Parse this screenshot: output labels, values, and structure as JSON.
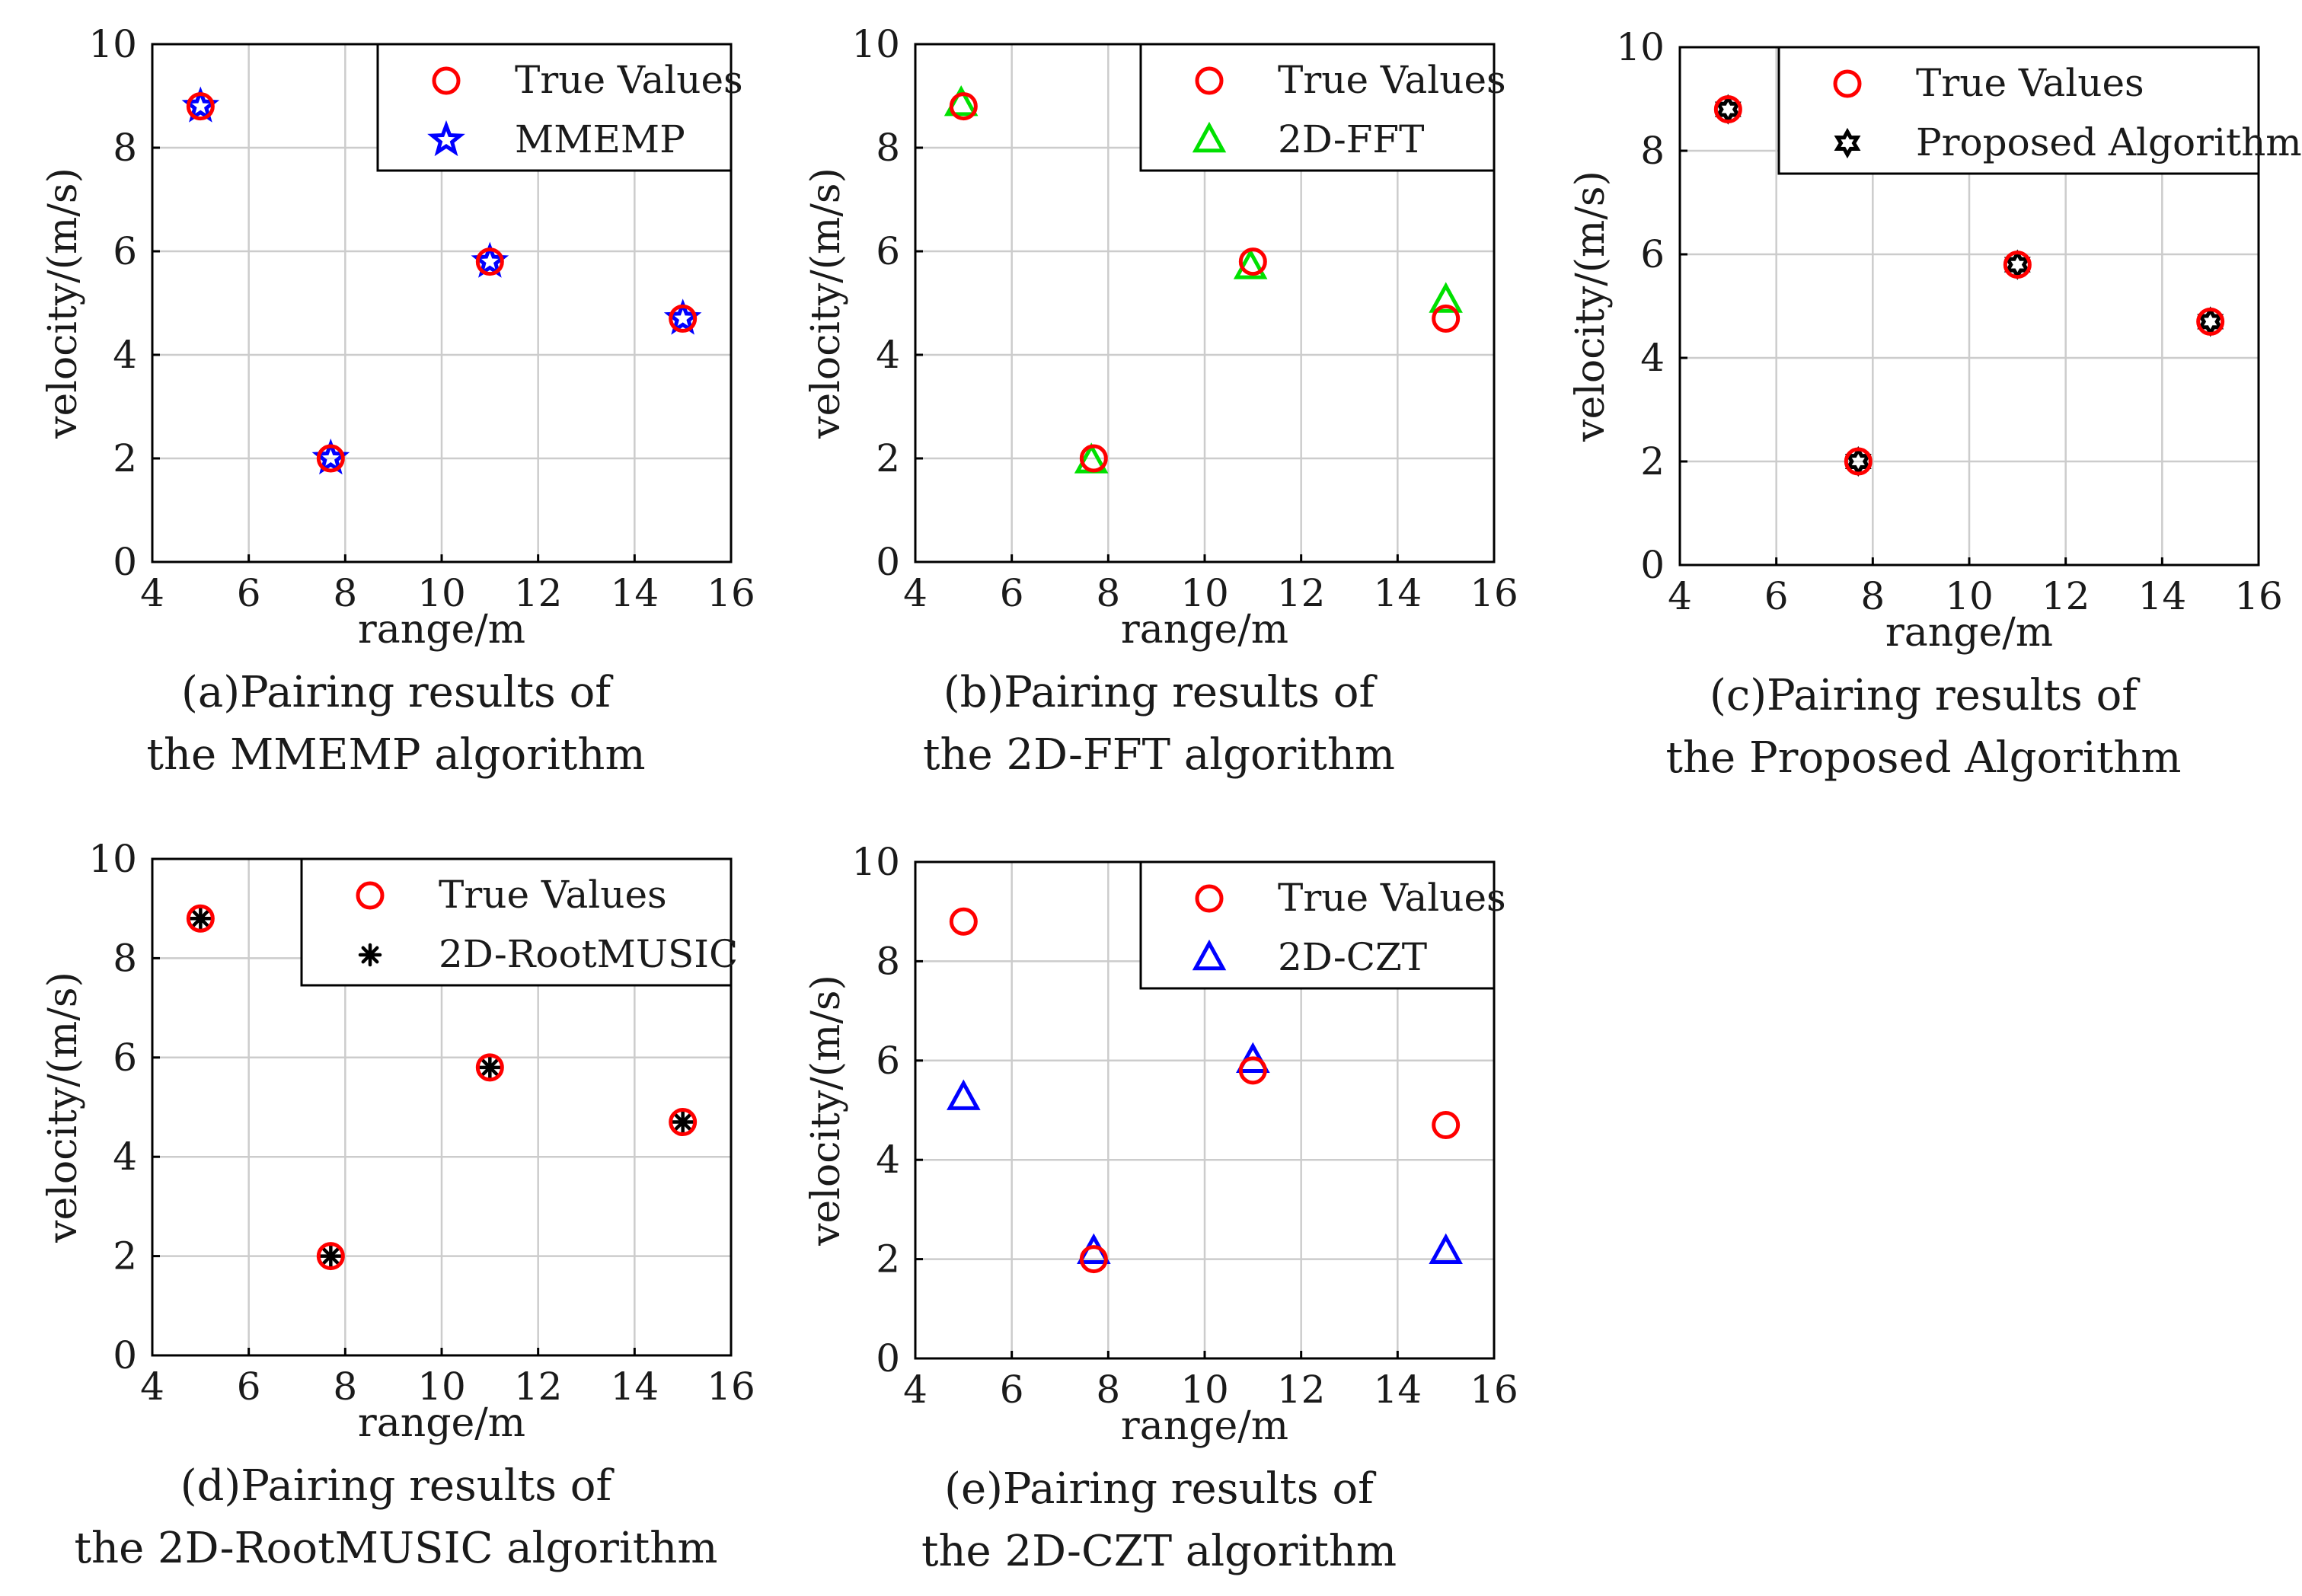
{
  "colors": {
    "true_marker": "#ff0000",
    "mmemp": "#0000ff",
    "fft": "#00e000",
    "proposed": "#000000",
    "rootmusic": "#000000",
    "czt": "#0000ff",
    "grid": "#cccccc",
    "axis": "#000000"
  },
  "chart_data": [
    {
      "type": "scatter",
      "panel": "a",
      "caption_line1": "(a)Pairing results of",
      "caption_line2": "the MMEMP algorithm",
      "xlabel": "range/m",
      "ylabel": "velocity/(m/s)",
      "xlim": [
        4,
        16
      ],
      "ylim": [
        0,
        10
      ],
      "xticks": [
        4,
        6,
        8,
        10,
        12,
        14,
        16
      ],
      "yticks": [
        0,
        2,
        4,
        6,
        8,
        10
      ],
      "grid": true,
      "legend_position": "top-right",
      "series": [
        {
          "name": "True Values",
          "marker": "circle",
          "color": "#ff0000",
          "points": [
            [
              5,
              8.8
            ],
            [
              7.7,
              2.0
            ],
            [
              11,
              5.8
            ],
            [
              15,
              4.7
            ]
          ]
        },
        {
          "name": "MMEMP",
          "marker": "pentagram",
          "color": "#0000ff",
          "points": [
            [
              5,
              8.8
            ],
            [
              7.7,
              2.0
            ],
            [
              11,
              5.8
            ],
            [
              15,
              4.7
            ]
          ]
        }
      ]
    },
    {
      "type": "scatter",
      "panel": "b",
      "caption_line1": "(b)Pairing results of",
      "caption_line2": "the 2D-FFT algorithm",
      "xlabel": "range/m",
      "ylabel": "velocity/(m/s)",
      "xlim": [
        4,
        16
      ],
      "ylim": [
        0,
        10
      ],
      "xticks": [
        4,
        6,
        8,
        10,
        12,
        14,
        16
      ],
      "yticks": [
        0,
        2,
        4,
        6,
        8,
        10
      ],
      "grid": true,
      "legend_position": "top-right",
      "series": [
        {
          "name": "True Values",
          "marker": "circle",
          "color": "#ff0000",
          "points": [
            [
              5,
              8.8
            ],
            [
              7.7,
              2.0
            ],
            [
              11,
              5.8
            ],
            [
              15,
              4.7
            ]
          ]
        },
        {
          "name": "2D-FFT",
          "marker": "triangle",
          "color": "#00e000",
          "points": [
            [
              4.95,
              8.85
            ],
            [
              7.65,
              1.95
            ],
            [
              10.95,
              5.7
            ],
            [
              15,
              5.05
            ]
          ]
        }
      ]
    },
    {
      "type": "scatter",
      "panel": "c",
      "caption_line1": "(c)Pairing results of",
      "caption_line2": "the Proposed Algorithm",
      "xlabel": "range/m",
      "ylabel": "velocity/(m/s)",
      "xlim": [
        4,
        16
      ],
      "ylim": [
        0,
        10
      ],
      "xticks": [
        4,
        6,
        8,
        10,
        12,
        14,
        16
      ],
      "yticks": [
        0,
        2,
        4,
        6,
        8,
        10
      ],
      "grid": true,
      "legend_position": "top-right",
      "series": [
        {
          "name": "True Values",
          "marker": "circle",
          "color": "#ff0000",
          "points": [
            [
              5,
              8.8
            ],
            [
              7.7,
              2.0
            ],
            [
              11,
              5.8
            ],
            [
              15,
              4.7
            ]
          ]
        },
        {
          "name": "Proposed Algorithm",
          "marker": "hexagram",
          "color": "#000000",
          "points": [
            [
              5,
              8.8
            ],
            [
              7.7,
              2.0
            ],
            [
              11,
              5.8
            ],
            [
              15,
              4.7
            ]
          ]
        }
      ]
    },
    {
      "type": "scatter",
      "panel": "d",
      "caption_line1": "(d)Pairing results of",
      "caption_line2": "the 2D-RootMUSIC algorithm",
      "xlabel": "range/m",
      "ylabel": "velocity/(m/s)",
      "xlim": [
        4,
        16
      ],
      "ylim": [
        0,
        10
      ],
      "xticks": [
        4,
        6,
        8,
        10,
        12,
        14,
        16
      ],
      "yticks": [
        0,
        2,
        4,
        6,
        8,
        10
      ],
      "grid": true,
      "legend_position": "top-right",
      "series": [
        {
          "name": "True Values",
          "marker": "circle",
          "color": "#ff0000",
          "points": [
            [
              5,
              8.8
            ],
            [
              7.7,
              2.0
            ],
            [
              11,
              5.8
            ],
            [
              15,
              4.7
            ]
          ]
        },
        {
          "name": "2D-RootMUSIC",
          "marker": "asterisk",
          "color": "#000000",
          "points": [
            [
              5,
              8.8
            ],
            [
              7.7,
              2.0
            ],
            [
              11,
              5.8
            ],
            [
              15,
              4.7
            ]
          ]
        }
      ]
    },
    {
      "type": "scatter",
      "panel": "e",
      "caption_line1": "(e)Pairing results of",
      "caption_line2": "the 2D-CZT algorithm",
      "xlabel": "range/m",
      "ylabel": "velocity/(m/s)",
      "xlim": [
        4,
        16
      ],
      "ylim": [
        0,
        10
      ],
      "xticks": [
        4,
        6,
        8,
        10,
        12,
        14,
        16
      ],
      "yticks": [
        0,
        2,
        4,
        6,
        8,
        10
      ],
      "grid": true,
      "legend_position": "top-right",
      "series": [
        {
          "name": "True Values",
          "marker": "circle",
          "color": "#ff0000",
          "points": [
            [
              5,
              8.8
            ],
            [
              7.7,
              2.0
            ],
            [
              11,
              5.8
            ],
            [
              15,
              4.7
            ]
          ]
        },
        {
          "name": "2D-CZT",
          "marker": "triangle",
          "color": "#0000ff",
          "points": [
            [
              5,
              5.25
            ],
            [
              7.7,
              2.15
            ],
            [
              11,
              6.0
            ],
            [
              15,
              2.15
            ]
          ]
        }
      ]
    }
  ]
}
